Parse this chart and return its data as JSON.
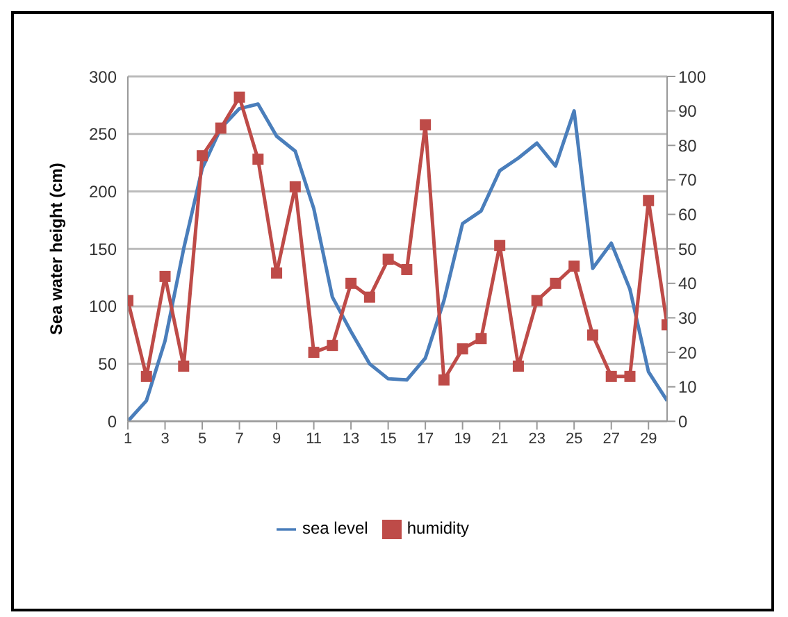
{
  "chart_data": {
    "type": "line",
    "ylabel": "Sea water height (cm)",
    "x": [
      1,
      2,
      3,
      4,
      5,
      6,
      7,
      8,
      9,
      10,
      11,
      12,
      13,
      14,
      15,
      16,
      17,
      18,
      19,
      20,
      21,
      22,
      23,
      24,
      25,
      26,
      27,
      28,
      29,
      30
    ],
    "series": [
      {
        "name": "sea level",
        "color": "#4a7ebb",
        "marker": "none",
        "values": [
          0,
          18,
          70,
          150,
          220,
          255,
          272,
          276,
          248,
          235,
          185,
          108,
          78,
          50,
          37,
          36,
          55,
          105,
          172,
          183,
          218,
          229,
          242,
          222,
          270,
          133,
          155,
          115,
          43,
          18
        ]
      },
      {
        "name": "humidity",
        "color": "#be4b48",
        "marker": "square",
        "axis": "y2",
        "values": [
          35,
          13,
          42,
          16,
          77,
          85,
          94,
          76,
          43,
          68,
          20,
          22,
          40,
          36,
          47,
          44,
          86,
          12,
          21,
          24,
          51,
          16,
          35,
          40,
          45,
          25,
          13,
          13,
          64,
          28
        ]
      }
    ],
    "xlim": [
      1,
      30
    ],
    "xticks": [
      1,
      3,
      5,
      7,
      9,
      11,
      13,
      15,
      17,
      19,
      21,
      23,
      25,
      27,
      29
    ],
    "ylim": [
      0,
      300
    ],
    "yticks": [
      0,
      50,
      100,
      150,
      200,
      250,
      300
    ],
    "y2lim": [
      0,
      100
    ],
    "y2ticks": [
      0,
      10,
      20,
      30,
      40,
      50,
      60,
      70,
      80,
      90,
      100
    ],
    "grid": "y",
    "legend": "bottom"
  }
}
